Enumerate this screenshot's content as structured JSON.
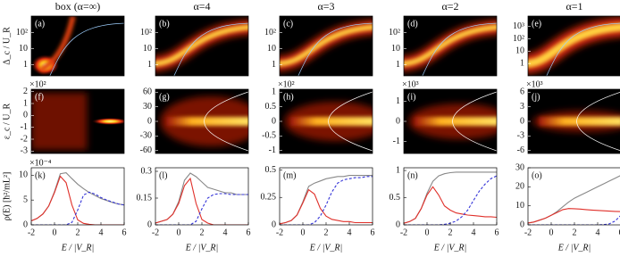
{
  "chart_data": [
    {
      "type": "heatmap",
      "title": "box (α=∞)",
      "panel_label": "(a)",
      "y_label": "Δ_c / U_R",
      "yscale": "log",
      "ylim": [
        0.2,
        1100
      ],
      "yticks": [
        1,
        10,
        {
          "value": 100,
          "label": "10²"
        }
      ]
    },
    {
      "type": "heatmap",
      "title": "α=4",
      "panel_label": "(b)",
      "yscale": "log",
      "ylim": [
        0.2,
        1100
      ],
      "yticks": [
        1,
        10,
        {
          "value": 100,
          "label": "10²"
        }
      ]
    },
    {
      "type": "heatmap",
      "title": "α=3",
      "panel_label": "(c)",
      "yscale": "log",
      "ylim": [
        0.2,
        1100
      ],
      "yticks": [
        1,
        10,
        {
          "value": 100,
          "label": "10²"
        }
      ]
    },
    {
      "type": "heatmap",
      "title": "α=2",
      "panel_label": "(d)",
      "yscale": "log",
      "ylim": [
        0.2,
        1100
      ],
      "yticks": [
        1,
        10,
        {
          "value": 100,
          "label": "10²"
        }
      ]
    },
    {
      "type": "heatmap",
      "title": "α=1",
      "panel_label": "(e)",
      "yscale": "log",
      "ylim": [
        0.1,
        7000
      ],
      "yticks": [
        1,
        10,
        {
          "value": 100,
          "label": "10²"
        },
        {
          "value": 1000,
          "label": "10³"
        }
      ]
    },
    {
      "type": "heatmap",
      "panel_label": "(f)",
      "y_label": "ε_c / U_R",
      "y_exponent": "×10²",
      "ylim": [
        -3.2,
        2.2
      ],
      "yticks": [
        -3,
        -2,
        -1,
        0,
        1,
        2
      ]
    },
    {
      "type": "heatmap",
      "panel_label": "(g)",
      "ylim": [
        -66,
        66
      ],
      "yticks": [
        -60,
        -30,
        0,
        30,
        60
      ]
    },
    {
      "type": "heatmap",
      "panel_label": "(h)",
      "y_exponent": "×10²",
      "ylim": [
        -1.1,
        1.1
      ],
      "yticks": [
        -1,
        -0.5,
        0,
        0.5,
        1
      ]
    },
    {
      "type": "heatmap",
      "panel_label": "(i)",
      "y_exponent": "×10³",
      "ylim": [
        -1.6,
        1.6
      ],
      "yticks": [
        -1,
        0,
        1
      ]
    },
    {
      "type": "heatmap",
      "panel_label": "(j)",
      "y_exponent": "×10³",
      "ylim": [
        -6.6,
        6.6
      ],
      "yticks": [
        -6,
        -3,
        0,
        3,
        6
      ]
    },
    {
      "type": "line",
      "panel_label": "(k)",
      "y_label": "ρ(E) [ħ²/mL²]",
      "y_exponent": "×10⁻⁴",
      "x_label": "E / |V_R|",
      "x": [
        -2,
        -1.5,
        -1,
        -0.5,
        0,
        0.5,
        1,
        1.5,
        2,
        2.5,
        3,
        3.5,
        4,
        4.5,
        5,
        5.5,
        6
      ],
      "xlim": [
        -2,
        6
      ],
      "xticks": [
        -2,
        0,
        2,
        4,
        6
      ],
      "ylim": [
        0,
        11.5
      ],
      "yticks": [
        0,
        5,
        10
      ],
      "series": [
        {
          "color": "#888888",
          "values": [
            0.8,
            1.3,
            2.2,
            3.8,
            6.7,
            10.3,
            10.5,
            9.3,
            8.2,
            7.3,
            6.5,
            5.9,
            5.3,
            4.9,
            4.5,
            4.2,
            4
          ]
        },
        {
          "color": "#e0302a",
          "values": [
            0.8,
            1.3,
            2.2,
            3.8,
            6.5,
            9.8,
            8.5,
            4,
            1,
            0.3,
            0.1,
            0,
            0,
            0,
            0,
            0,
            0
          ]
        },
        {
          "color": "#3434d8",
          "dashed": true,
          "values": [
            0,
            0,
            0,
            0,
            0,
            0,
            0,
            0.5,
            3,
            6,
            6.6,
            6.2,
            5.5,
            5,
            4.6,
            4.2,
            4
          ]
        }
      ]
    },
    {
      "type": "line",
      "panel_label": "(l)",
      "x_label": "E / |V_R|",
      "x": [
        -2,
        -1.5,
        -1,
        -0.5,
        0,
        0.5,
        1,
        1.5,
        2,
        2.5,
        3,
        3.5,
        4,
        4.5,
        5,
        5.5,
        6
      ],
      "xlim": [
        -2,
        6
      ],
      "xticks": [
        -2,
        0,
        2,
        4,
        6
      ],
      "ylim": [
        0,
        0.32
      ],
      "yticks": [
        0,
        0.15,
        0.3
      ],
      "series": [
        {
          "color": "#888888",
          "values": [
            0.01,
            0.02,
            0.03,
            0.06,
            0.13,
            0.25,
            0.29,
            0.27,
            0.24,
            0.21,
            0.2,
            0.19,
            0.18,
            0.18,
            0.17,
            0.17,
            0.17
          ]
        },
        {
          "color": "#e0302a",
          "values": [
            0.01,
            0.02,
            0.03,
            0.06,
            0.12,
            0.22,
            0.26,
            0.12,
            0.03,
            0.01,
            0,
            0,
            0,
            0,
            0,
            0,
            0
          ]
        },
        {
          "color": "#3434d8",
          "dashed": true,
          "values": [
            0,
            0,
            0,
            0,
            0,
            0,
            0,
            0.02,
            0.09,
            0.15,
            0.17,
            0.175,
            0.175,
            0.17,
            0.17,
            0.17,
            0.17
          ]
        }
      ]
    },
    {
      "type": "line",
      "panel_label": "(m)",
      "x_label": "E / |V_R|",
      "x": [
        -2,
        -1.5,
        -1,
        -0.5,
        0,
        0.5,
        1,
        1.5,
        2,
        2.5,
        3,
        3.5,
        4,
        4.5,
        5,
        5.5,
        6
      ],
      "xlim": [
        -2,
        6
      ],
      "xticks": [
        -2,
        0,
        2,
        4,
        6
      ],
      "ylim": [
        0,
        0.52
      ],
      "yticks": [
        0,
        0.25,
        0.5
      ],
      "series": [
        {
          "color": "#888888",
          "values": [
            0.01,
            0.02,
            0.04,
            0.09,
            0.21,
            0.35,
            0.38,
            0.4,
            0.42,
            0.43,
            0.44,
            0.44,
            0.45,
            0.45,
            0.45,
            0.45,
            0.45
          ]
        },
        {
          "color": "#e0302a",
          "values": [
            0.01,
            0.02,
            0.04,
            0.09,
            0.2,
            0.32,
            0.28,
            0.15,
            0.08,
            0.05,
            0.04,
            0.03,
            0.03,
            0.02,
            0.02,
            0.02,
            0.02
          ]
        },
        {
          "color": "#3434d8",
          "dashed": true,
          "values": [
            0,
            0,
            0,
            0,
            0,
            0,
            0.02,
            0.08,
            0.18,
            0.3,
            0.38,
            0.41,
            0.42,
            0.43,
            0.43,
            0.44,
            0.44
          ]
        }
      ]
    },
    {
      "type": "line",
      "panel_label": "(n)",
      "x_label": "E / |V_R|",
      "x": [
        -2,
        -1.5,
        -1,
        -0.5,
        0,
        0.5,
        1,
        1.5,
        2,
        2.5,
        3,
        3.5,
        4,
        4.5,
        5,
        5.5,
        6
      ],
      "xlim": [
        -2,
        6
      ],
      "xticks": [
        -2,
        0,
        2,
        4,
        6
      ],
      "ylim": [
        0,
        1.05
      ],
      "yticks": [
        0,
        0.5,
        1
      ],
      "series": [
        {
          "color": "#888888",
          "values": [
            0.03,
            0.06,
            0.12,
            0.3,
            0.58,
            0.8,
            0.9,
            0.94,
            0.96,
            0.97,
            0.97,
            0.97,
            0.97,
            0.97,
            0.97,
            0.97,
            0.97
          ]
        },
        {
          "color": "#e0302a",
          "values": [
            0.03,
            0.06,
            0.12,
            0.3,
            0.55,
            0.7,
            0.55,
            0.35,
            0.27,
            0.22,
            0.2,
            0.18,
            0.17,
            0.16,
            0.15,
            0.15,
            0.14
          ]
        },
        {
          "color": "#3434d8",
          "dashed": true,
          "values": [
            0,
            0,
            0,
            0,
            0,
            0,
            0,
            0.01,
            0.03,
            0.07,
            0.15,
            0.27,
            0.45,
            0.62,
            0.75,
            0.85,
            0.9
          ]
        }
      ]
    },
    {
      "type": "line",
      "panel_label": "(o)",
      "x_label": "E / |V_R|",
      "x": [
        -2,
        -1.5,
        -1,
        -0.5,
        0,
        0.5,
        1,
        1.5,
        2,
        2.5,
        3,
        3.5,
        4,
        4.5,
        5,
        5.5,
        6
      ],
      "xlim": [
        -2,
        6
      ],
      "xticks": [
        -2,
        0,
        2,
        4,
        6
      ],
      "ylim": [
        0,
        30
      ],
      "yticks": [
        0,
        10,
        20,
        30
      ],
      "series": [
        {
          "color": "#888888",
          "values": [
            1,
            1.5,
            2.5,
            3.5,
            5,
            7,
            9.5,
            12,
            14,
            15.5,
            17,
            18.5,
            20,
            21.5,
            23,
            24.5,
            26
          ]
        },
        {
          "color": "#e0302a",
          "values": [
            1,
            1.5,
            2.5,
            3.5,
            5,
            6.5,
            8,
            8.6,
            8.5,
            8.3,
            8,
            7.8,
            7.6,
            7.4,
            7.2,
            7.1,
            7
          ]
        },
        {
          "color": "#3434d8",
          "dashed": true,
          "values": [
            0,
            0,
            0,
            0,
            0,
            0,
            0,
            0,
            0,
            0,
            0,
            0,
            0,
            0.1,
            0.5,
            2,
            5
          ]
        }
      ]
    }
  ]
}
